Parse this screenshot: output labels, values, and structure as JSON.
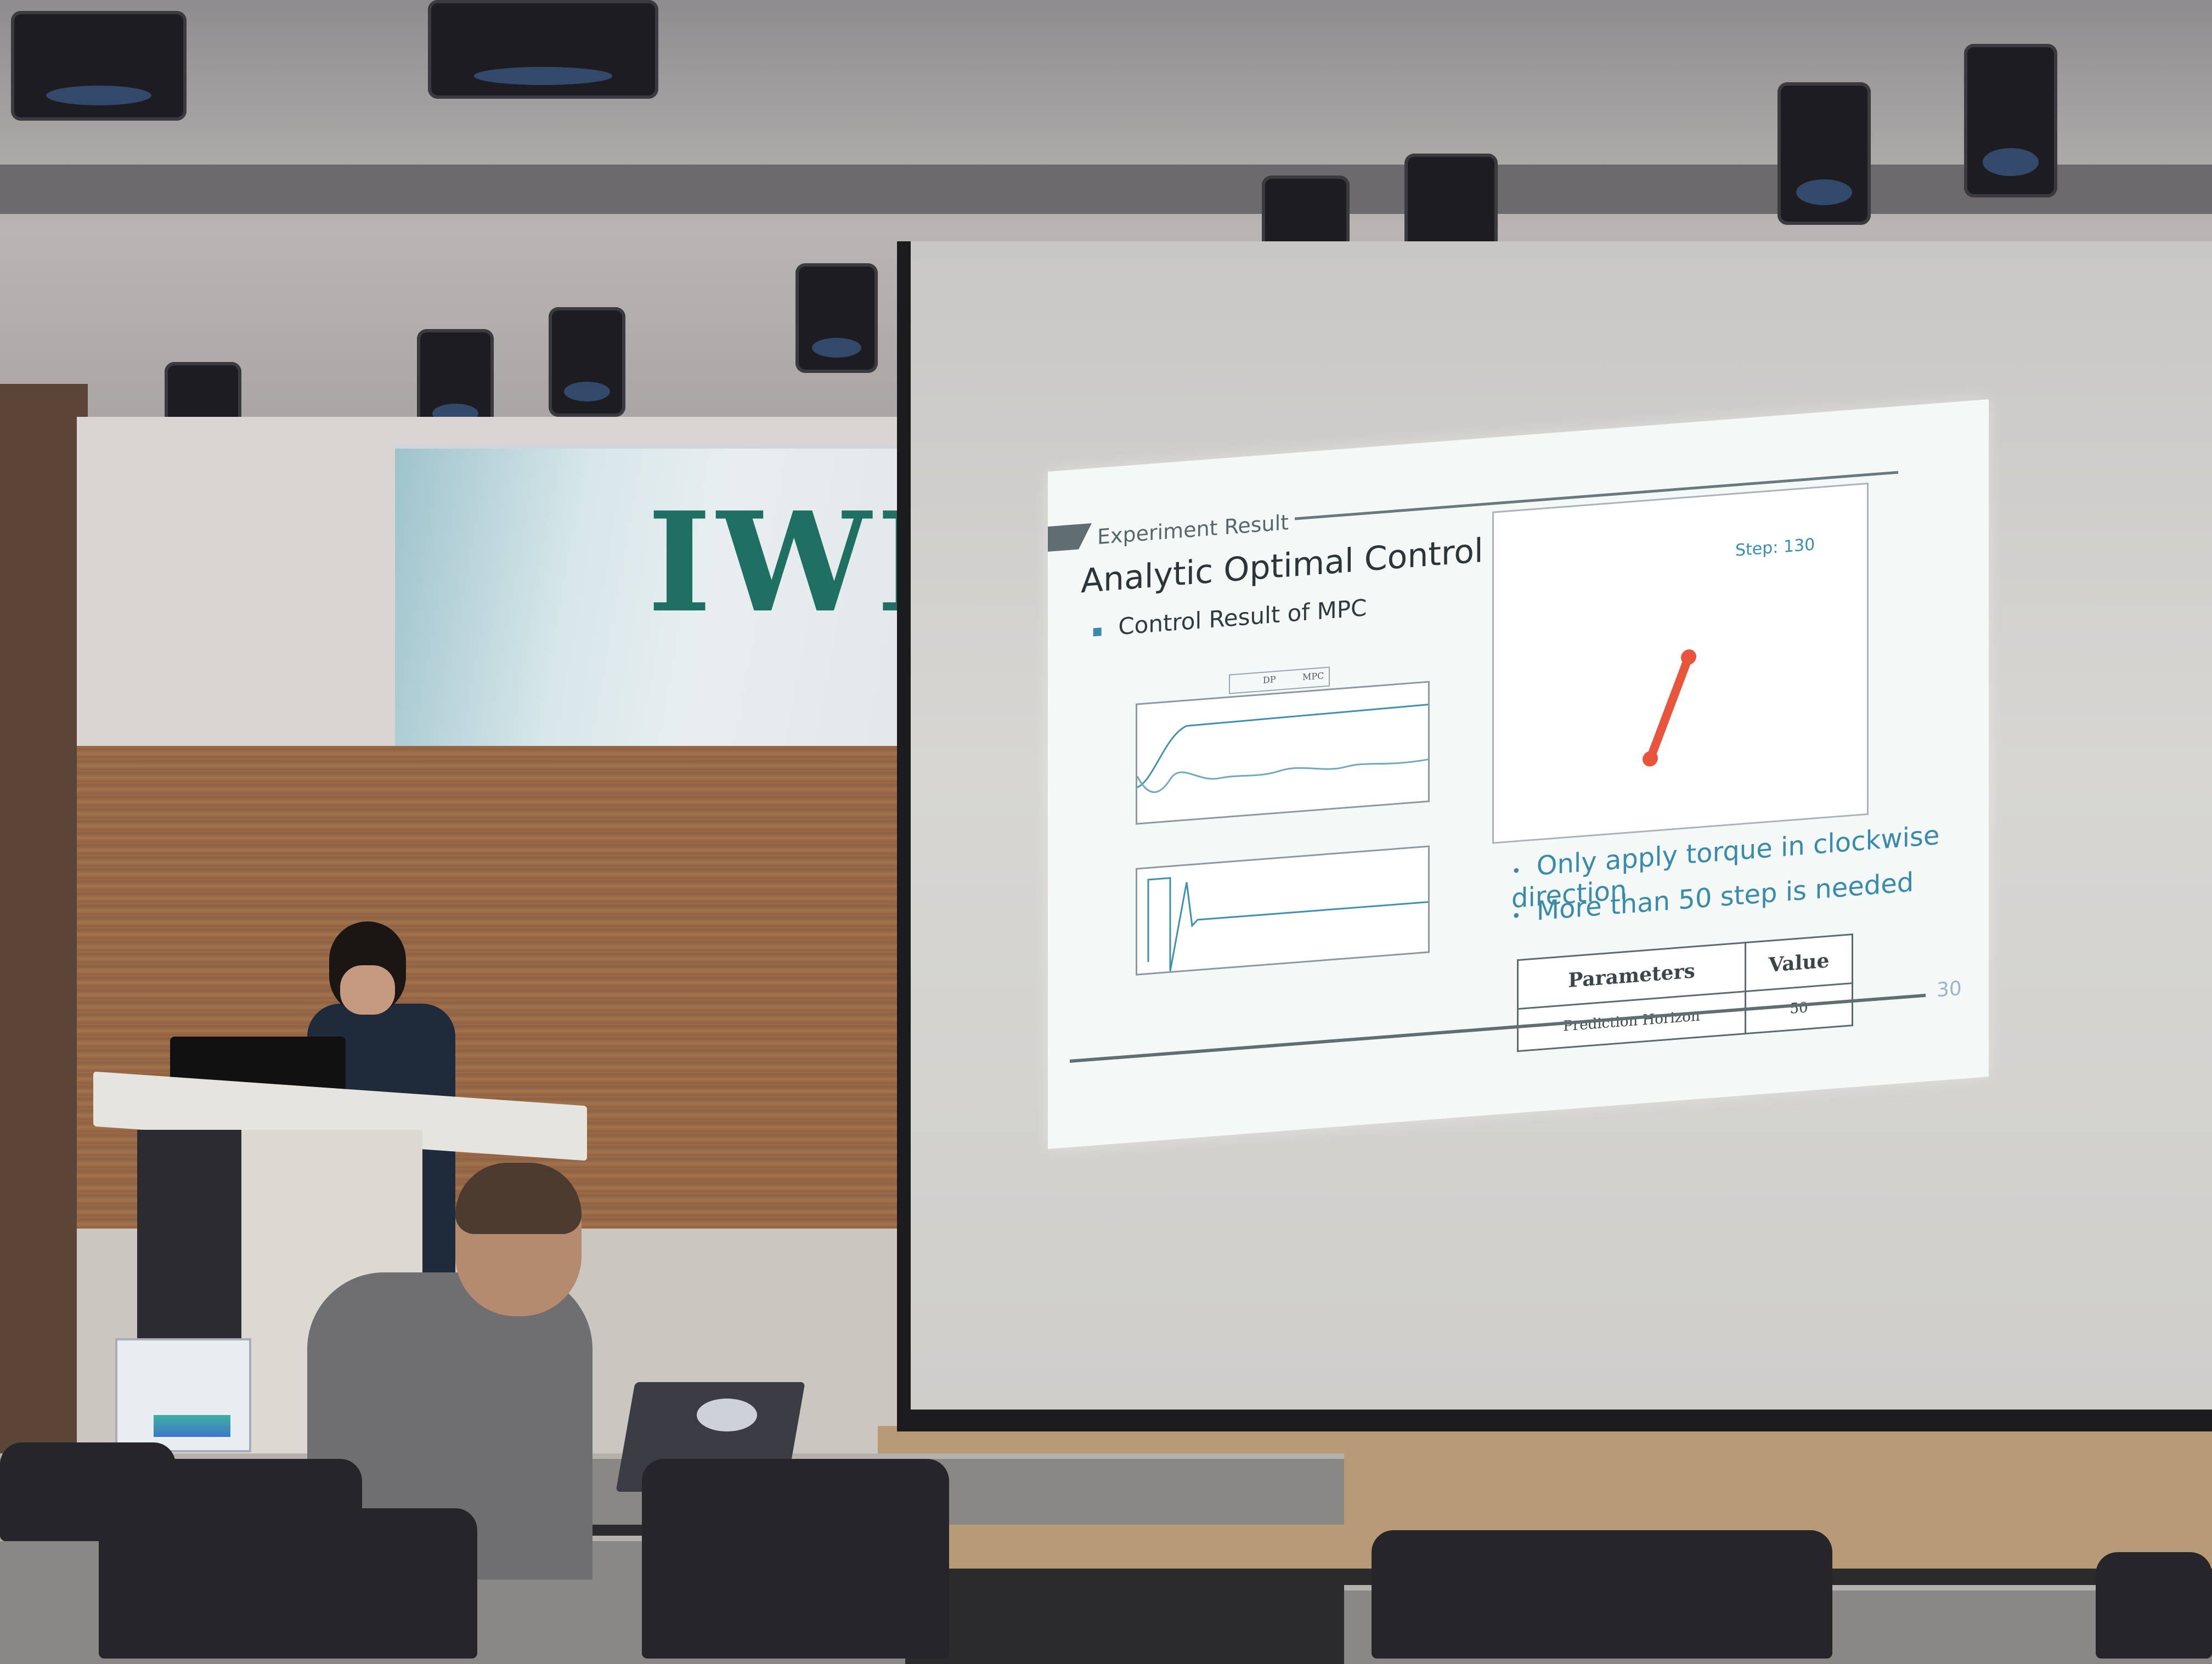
{
  "banner": {
    "text": "IWIS"
  },
  "slide": {
    "section_label": "Experiment Result",
    "title": "Analytic Optimal Control",
    "bullet": "Control Result of MPC",
    "legend": [
      "DP",
      "MPC"
    ],
    "animation": {
      "step_label": "Step: 130"
    },
    "notes": [
      "Only apply torque in clockwise direction",
      "More than 50 step is needed"
    ],
    "table": {
      "headers": [
        "Parameters",
        "Value"
      ],
      "rows": [
        [
          "Prediction Horizon",
          "50"
        ]
      ]
    },
    "page_number": "30"
  },
  "colors": {
    "slide_bg": "#f4f8f7",
    "accent_blue": "#3a8aab",
    "pendulum": "#e8553c",
    "banner_green": "#1f6f63"
  }
}
